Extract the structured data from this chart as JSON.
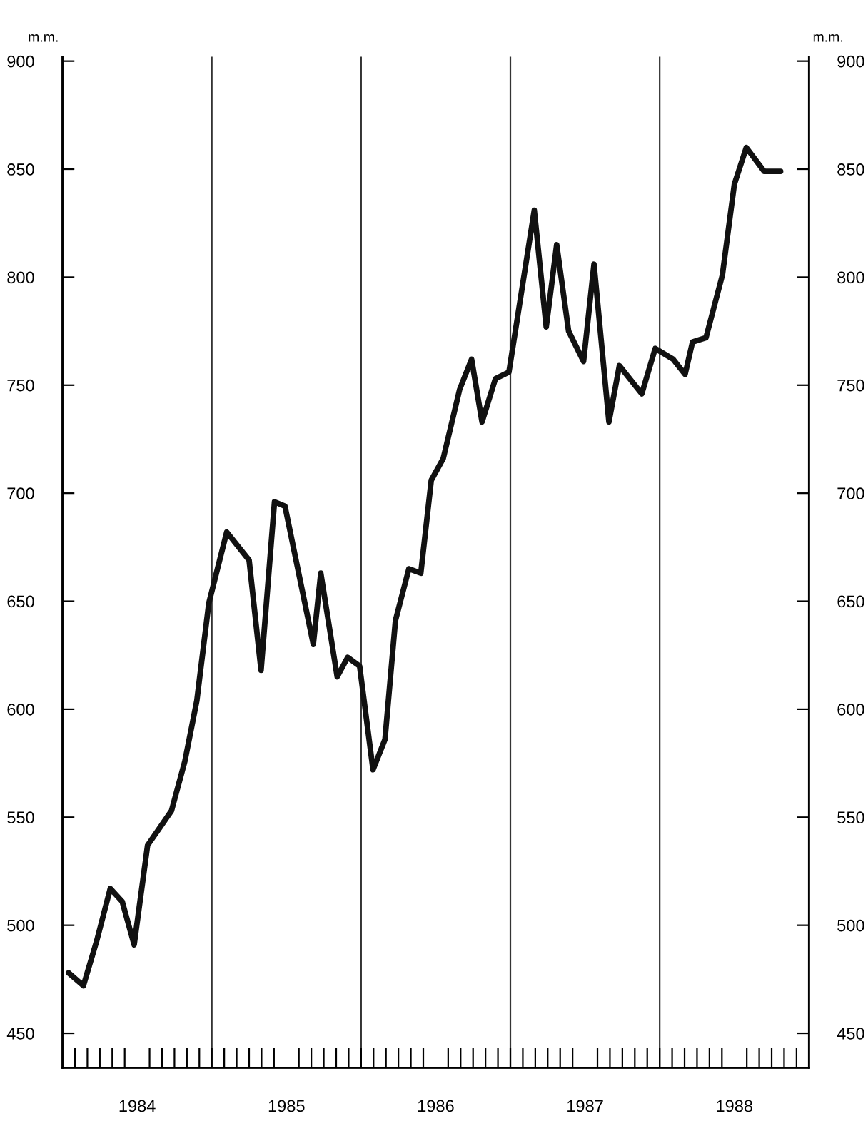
{
  "chart_data": {
    "type": "line",
    "ylabel": "m.m.",
    "y2label": "m.m.",
    "series": [
      {
        "color": "#111111",
        "axis": "y",
        "x": [
          1984.04,
          1984.14,
          1984.23,
          1984.32,
          1984.4,
          1984.48,
          1984.57,
          1984.65,
          1984.73,
          1984.82,
          1984.9,
          1984.98,
          1985.1,
          1985.25,
          1985.33,
          1985.42,
          1985.49,
          1985.68,
          1985.73,
          1985.84,
          1985.91,
          1985.99,
          1986.08,
          1986.16,
          1986.23,
          1986.32,
          1986.4,
          1986.47,
          1986.55,
          1986.66,
          1986.74,
          1986.81,
          1986.9,
          1986.99,
          1987.16,
          1987.24,
          1987.31,
          1987.39,
          1987.49,
          1987.56,
          1987.66,
          1987.73,
          1987.88,
          1987.97,
          1988.09,
          1988.17,
          1988.22,
          1988.31,
          1988.42,
          1988.5,
          1988.58,
          1988.7,
          1988.81
        ],
        "values": [
          478,
          472,
          493,
          517,
          511,
          491,
          537,
          545,
          553,
          576,
          604,
          649,
          682,
          669,
          618,
          696,
          694,
          630,
          663,
          615,
          624,
          620,
          572,
          586,
          641,
          665,
          663,
          706,
          716,
          748,
          762,
          733,
          753,
          756,
          831,
          777,
          815,
          775,
          761,
          806,
          733,
          759,
          746,
          767,
          762,
          755,
          770,
          772,
          801,
          843,
          860,
          849,
          849
        ]
      }
    ],
    "xlim": [
      1984,
      1989
    ],
    "xticks": [
      {
        "value": 1984.5,
        "label": "1984"
      },
      {
        "value": 1985.5,
        "label": "1985"
      },
      {
        "value": 1986.5,
        "label": "1986"
      },
      {
        "value": 1987.5,
        "label": "1987"
      },
      {
        "value": 1988.5,
        "label": "1988"
      }
    ],
    "ylim": [
      434,
      902
    ],
    "yticks": [
      450,
      500,
      550,
      600,
      650,
      700,
      750,
      800,
      850,
      900
    ],
    "y2lim": [
      434,
      902
    ],
    "y2ticks": [
      450,
      500,
      550,
      600,
      650,
      700,
      750,
      800,
      850,
      900
    ],
    "ref_lines": [
      {
        "axis": "x",
        "value": 1985,
        "color": "#333333"
      },
      {
        "axis": "x",
        "value": 1986,
        "color": "#333333"
      },
      {
        "axis": "x",
        "value": 1987,
        "color": "#333333"
      },
      {
        "axis": "x",
        "value": 1988,
        "color": "#333333"
      }
    ],
    "grid": false,
    "legend": false,
    "marker": "none",
    "line_style": "solid"
  }
}
